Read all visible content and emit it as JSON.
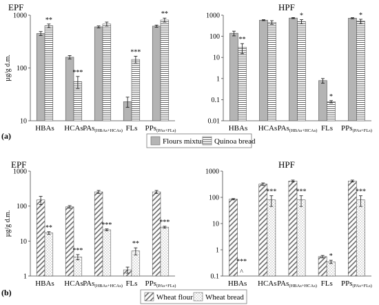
{
  "figure": {
    "panel_labels": [
      "(a)",
      "(b)"
    ],
    "legends": [
      {
        "entries": [
          {
            "label": "Flours mixture",
            "pattern": "solid-gray"
          },
          {
            "label": "Quinoa bread",
            "pattern": "horizontal-lines"
          }
        ]
      },
      {
        "entries": [
          {
            "label": "Wheat flour",
            "pattern": "diagonal-hatch"
          },
          {
            "label": "Wheat bread",
            "pattern": "dots"
          }
        ]
      }
    ]
  },
  "chart_data": [
    {
      "type": "bar",
      "scale": "log",
      "title": "EPF",
      "ylabel": "µg/g d.m.",
      "ylim": [
        10,
        1000
      ],
      "categories": [
        {
          "main": "HBAs"
        },
        {
          "main": "HCAs"
        },
        {
          "main": "PAs",
          "sub": "(HBAs+HCAs)"
        },
        {
          "main": "FLs"
        },
        {
          "main": "PPs",
          "sub": "(PAs+FLs)"
        }
      ],
      "ticks": [
        {
          "v": 10,
          "label": "10"
        },
        {
          "v": 100,
          "label": "100"
        },
        {
          "v": 1000,
          "label": "1000"
        }
      ],
      "series": [
        {
          "name": "Flours mixture",
          "pattern": "solid",
          "values": [
            450,
            160,
            600,
            23,
            620
          ],
          "errors": [
            40,
            12,
            25,
            5,
            30
          ]
        },
        {
          "name": "Quinoa bread",
          "pattern": "hlines",
          "values": [
            630,
            55,
            680,
            145,
            810
          ],
          "errors": [
            50,
            14,
            60,
            22,
            70
          ]
        }
      ],
      "annotations": [
        {
          "cat": 0,
          "series": 1,
          "text": "**"
        },
        {
          "cat": 1,
          "series": 1,
          "text": "***"
        },
        {
          "cat": 3,
          "series": 1,
          "text": "***"
        },
        {
          "cat": 4,
          "series": 1,
          "text": "**"
        }
      ]
    },
    {
      "type": "bar",
      "scale": "log",
      "title": "HPF",
      "ylabel": "",
      "ylim": [
        0.01,
        1000
      ],
      "categories": [
        {
          "main": "HBAs"
        },
        {
          "main": "HCAs"
        },
        {
          "main": "PAs",
          "sub": "(HBAs+HCAs)"
        },
        {
          "main": "FLs"
        },
        {
          "main": "PPs",
          "sub": "(PAs+FLs)"
        }
      ],
      "ticks": [
        {
          "v": 0.01,
          "label": "0.01"
        },
        {
          "v": 0.1,
          "label": "0.1"
        },
        {
          "v": 1,
          "label": "1"
        },
        {
          "v": 10,
          "label": "10"
        },
        {
          "v": 100,
          "label": "100"
        },
        {
          "v": 1000,
          "label": "1000"
        }
      ],
      "series": [
        {
          "name": "Flours mixture",
          "pattern": "solid",
          "values": [
            140,
            580,
            730,
            0.8,
            720
          ],
          "errors": [
            35,
            30,
            40,
            0.2,
            40
          ]
        },
        {
          "name": "Quinoa bread",
          "pattern": "hlines",
          "values": [
            30,
            460,
            500,
            0.08,
            520
          ],
          "errors": [
            15,
            90,
            110,
            0.01,
            120
          ]
        }
      ],
      "annotations": [
        {
          "cat": 0,
          "series": 1,
          "text": "**"
        },
        {
          "cat": 2,
          "series": 1,
          "text": "*"
        },
        {
          "cat": 3,
          "series": 1,
          "text": "*"
        },
        {
          "cat": 4,
          "series": 1,
          "text": "*"
        }
      ]
    },
    {
      "type": "bar",
      "scale": "log",
      "title": "EPF",
      "ylabel": "µg/g d.m.",
      "ylim": [
        1,
        1000
      ],
      "categories": [
        {
          "main": "HBAs"
        },
        {
          "main": "HCAs"
        },
        {
          "main": "PAs",
          "sub": "(HBAs+HCAs)"
        },
        {
          "main": "FLs"
        },
        {
          "main": "PPs",
          "sub": "(PAs+FLs)"
        }
      ],
      "ticks": [
        {
          "v": 1,
          "label": "1"
        },
        {
          "v": 10,
          "label": "10"
        },
        {
          "v": 100,
          "label": "100"
        },
        {
          "v": 1000,
          "label": "1000"
        }
      ],
      "series": [
        {
          "name": "Wheat flour",
          "pattern": "diag",
          "values": [
            150,
            95,
            255,
            1.5,
            255
          ],
          "errors": [
            40,
            8,
            25,
            0.3,
            25
          ]
        },
        {
          "name": "Wheat bread",
          "pattern": "dots",
          "values": [
            17,
            3.5,
            21,
            5.2,
            25
          ],
          "errors": [
            1.5,
            0.6,
            1.2,
            1.2,
            1.5
          ]
        }
      ],
      "annotations": [
        {
          "cat": 0,
          "series": 1,
          "text": "**"
        },
        {
          "cat": 1,
          "series": 1,
          "text": "***"
        },
        {
          "cat": 2,
          "series": 1,
          "text": "***"
        },
        {
          "cat": 3,
          "series": 1,
          "text": "**"
        },
        {
          "cat": 4,
          "series": 1,
          "text": "***"
        }
      ]
    },
    {
      "type": "bar",
      "scale": "log",
      "title": "HPF",
      "ylabel": "",
      "ylim": [
        0.1,
        1000
      ],
      "categories": [
        {
          "main": "HBAs"
        },
        {
          "main": "HCAs"
        },
        {
          "main": "PAs",
          "sub": "(HBAs+HCAs)"
        },
        {
          "main": "FLs"
        },
        {
          "main": "PPs",
          "sub": "(PAs+FLs)"
        }
      ],
      "ticks": [
        {
          "v": 0.1,
          "label": "0.1"
        },
        {
          "v": 1,
          "label": "1"
        },
        {
          "v": 10,
          "label": "10"
        },
        {
          "v": 100,
          "label": "100"
        },
        {
          "v": 1000,
          "label": "1000"
        }
      ],
      "series": [
        {
          "name": "Wheat flour",
          "pattern": "diag",
          "values": [
            85,
            320,
            420,
            0.55,
            420
          ],
          "errors": [
            5,
            35,
            35,
            0.06,
            35
          ]
        },
        {
          "name": "Wheat bread",
          "pattern": "dots",
          "values": [
            null,
            80,
            80,
            0.35,
            80
          ],
          "errors": [
            0,
            35,
            35,
            0.05,
            35
          ]
        }
      ],
      "annotations": [
        {
          "cat": 0,
          "series": 1,
          "text": "***"
        },
        {
          "cat": 1,
          "series": 1,
          "text": "***"
        },
        {
          "cat": 2,
          "series": 1,
          "text": "***"
        },
        {
          "cat": 3,
          "series": 1,
          "text": "*"
        },
        {
          "cat": 4,
          "series": 1,
          "text": "***"
        }
      ],
      "markers": [
        {
          "cat": 0,
          "series": 1,
          "text": "^"
        }
      ]
    }
  ]
}
